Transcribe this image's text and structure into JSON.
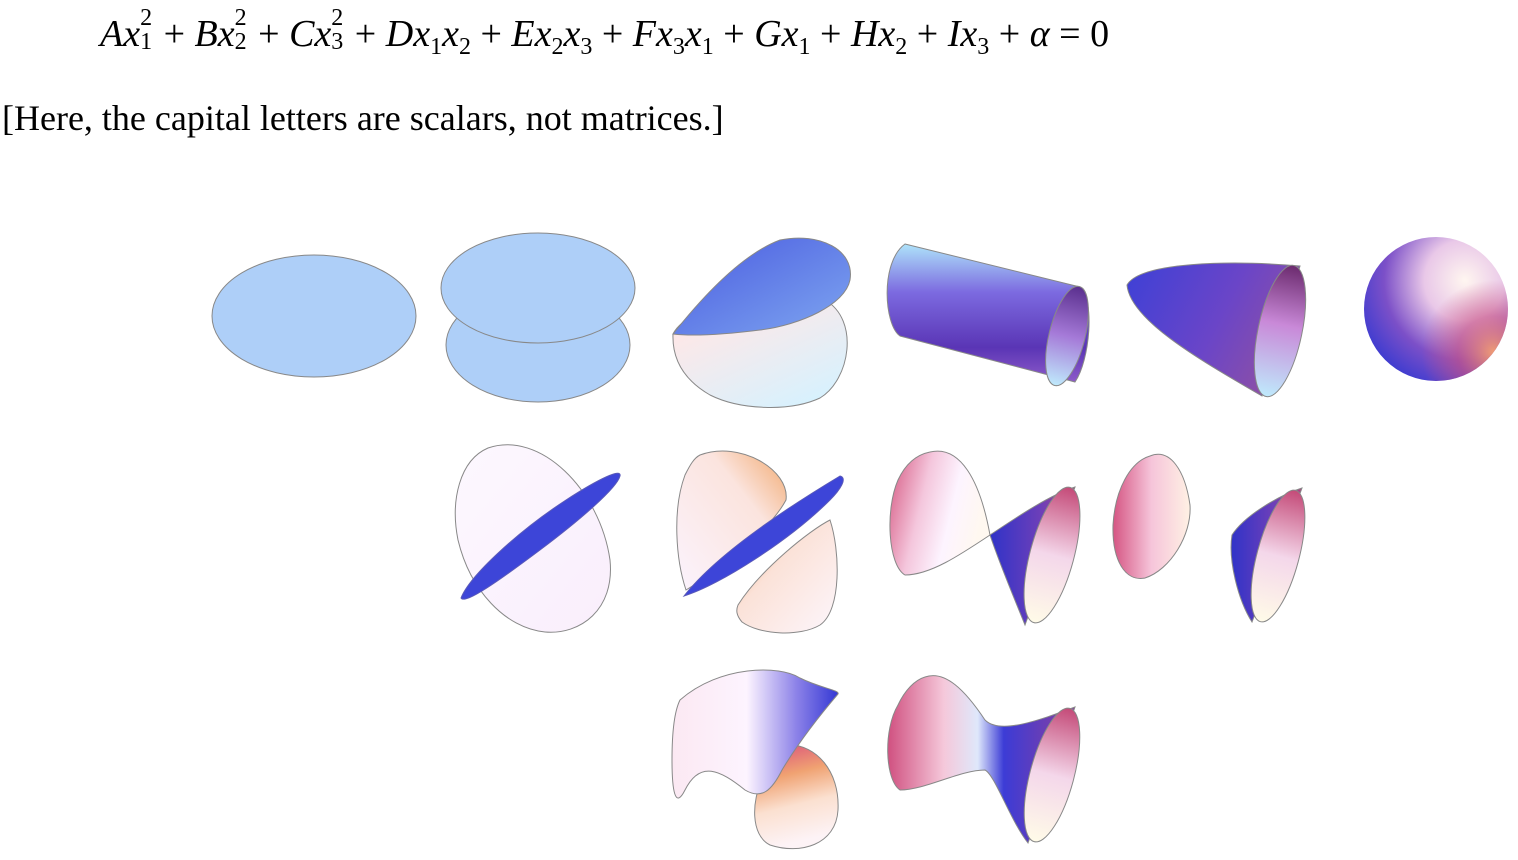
{
  "equation": {
    "terms": [
      {
        "coef": "A",
        "var": "x",
        "sup": "2",
        "sub": "1"
      },
      {
        "coef": "B",
        "var": "x",
        "sup": "2",
        "sub": "2"
      },
      {
        "coef": "C",
        "var": "x",
        "sup": "2",
        "sub": "3"
      },
      {
        "coef": "D",
        "v1": "x",
        "s1": "1",
        "v2": "x",
        "s2": "2"
      },
      {
        "coef": "E",
        "v1": "x",
        "s1": "2",
        "v2": "x",
        "s2": "3"
      },
      {
        "coef": "F",
        "v1": "x",
        "s1": "3",
        "v2": "x",
        "s2": "1"
      },
      {
        "coef": "G",
        "var": "x",
        "sub": "1"
      },
      {
        "coef": "H",
        "var": "x",
        "sub": "2"
      },
      {
        "coef": "I",
        "var": "x",
        "sub": "3"
      }
    ],
    "plus": "+",
    "constant": "α",
    "equals": "=",
    "rhs": "0"
  },
  "note": "[Here, the capital letters are scalars, not matrices.]",
  "colors": {
    "flat_fill": "#aecff8",
    "outline": "#888888",
    "blue": "#3c3fd8",
    "purple": "#8b4ec2",
    "pink": "#d24f7d",
    "light": "#fbf2ff",
    "peach": "#f6b07a"
  },
  "surfaces": [
    {
      "name": "ellipse"
    },
    {
      "name": "two-parallel-ellipses"
    },
    {
      "name": "intersecting-ellipses"
    },
    {
      "name": "elliptic-cylinder"
    },
    {
      "name": "elliptic-paraboloid"
    },
    {
      "name": "ellipsoid"
    },
    {
      "name": "intersecting-planes"
    },
    {
      "name": "parabolic-cylinder-pair"
    },
    {
      "name": "elliptic-cone"
    },
    {
      "name": "hyperboloid-two-sheets"
    },
    {
      "name": "hyperbolic-paraboloid"
    },
    {
      "name": "hyperboloid-one-sheet"
    }
  ]
}
